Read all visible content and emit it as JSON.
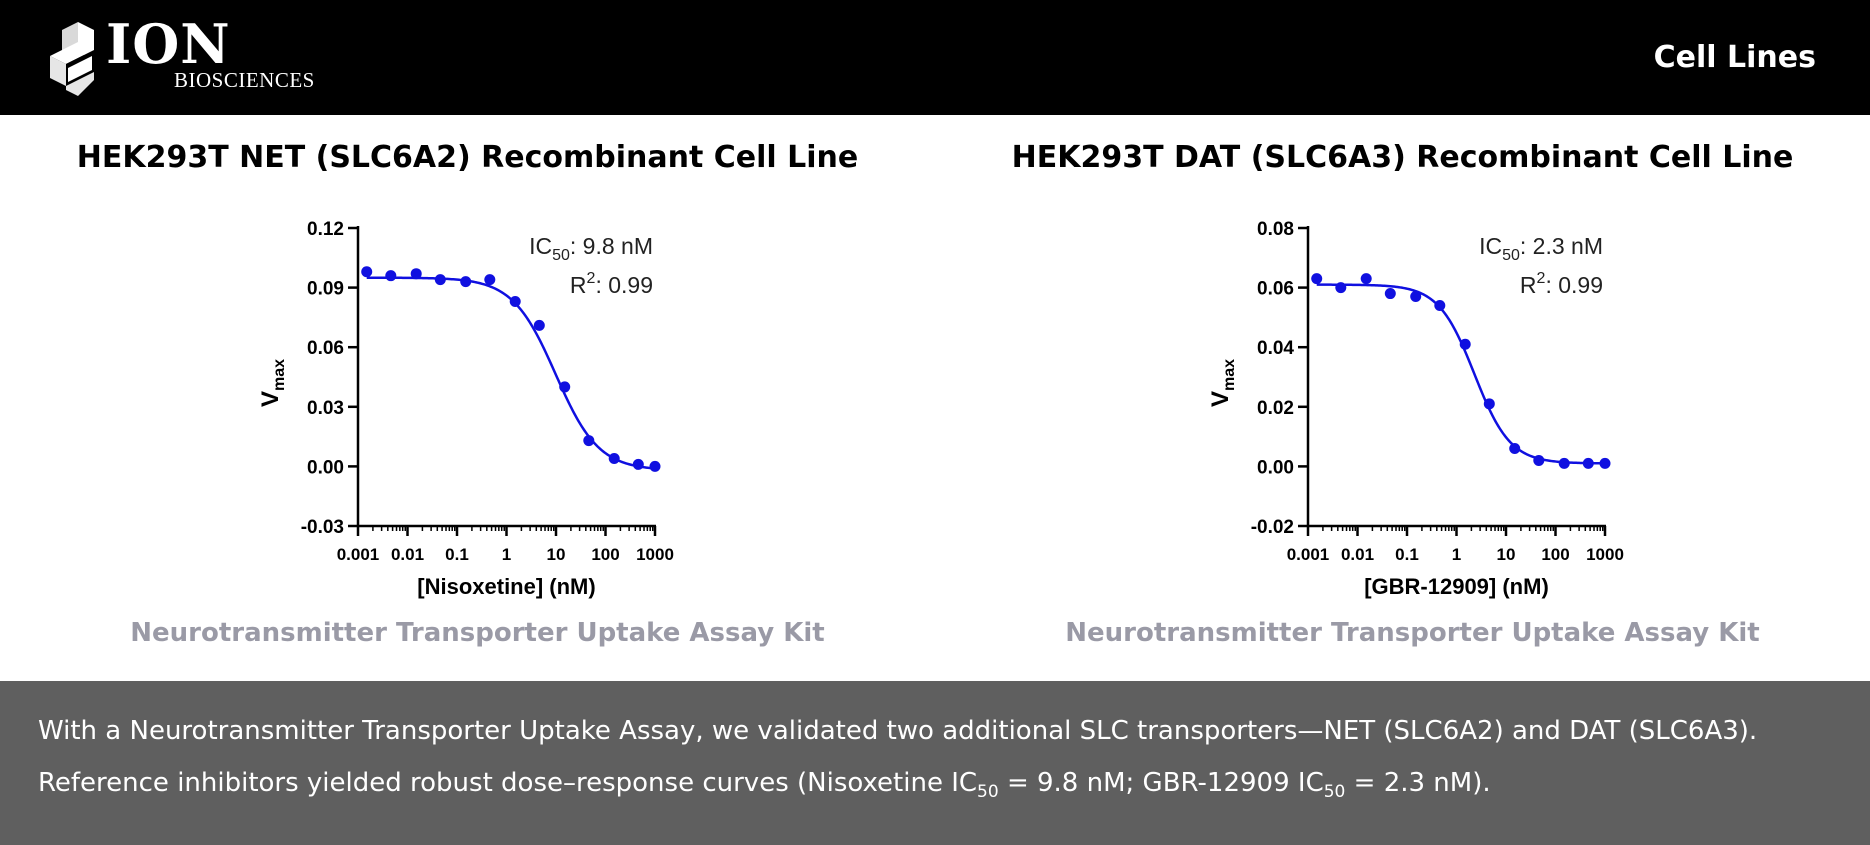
{
  "header": {
    "logo_text": "ION",
    "logo_subtext": "BIOSCIENCES",
    "title": "Cell Lines"
  },
  "panels": [
    {
      "title": "HEK293T NET (SLC6A2) Recombinant Cell Line",
      "kit_label": "Neurotransmitter Transporter Uptake Assay Kit",
      "annotation": {
        "ic50_prefix": "IC",
        "ic50_sub": "50",
        "ic50_value": ": 9.8 nM",
        "r2_prefix": "R",
        "r2_sup": "2",
        "r2_value": ": 0.99"
      }
    },
    {
      "title": "HEK293T DAT (SLC6A3) Recombinant Cell Line",
      "kit_label": "Neurotransmitter Transporter Uptake Assay Kit",
      "annotation": {
        "ic50_prefix": "IC",
        "ic50_sub": "50",
        "ic50_value": ": 2.3 nM",
        "r2_prefix": "R",
        "r2_sup": "2",
        "r2_value": ": 0.99"
      }
    }
  ],
  "chart_data": [
    {
      "type": "scatter",
      "xlabel": "[Nisoxetine] (nM)",
      "ylabel_main": "V",
      "ylabel_sub": "max",
      "x_scale": "log",
      "xlim": [
        0.001,
        1000
      ],
      "ylim": [
        -0.03,
        0.12
      ],
      "x_ticks": [
        0.001,
        0.01,
        0.1,
        1,
        10,
        100,
        1000
      ],
      "x_tick_labels": [
        "0.001",
        "0.01",
        "0.1",
        "1",
        "10",
        "100",
        "1000"
      ],
      "y_ticks": [
        -0.03,
        0.0,
        0.03,
        0.06,
        0.09,
        0.12
      ],
      "y_tick_labels": [
        "-0.03",
        "0.00",
        "0.03",
        "0.06",
        "0.09",
        "0.12"
      ],
      "ic50": 9.8,
      "r2": 0.99,
      "fit": {
        "top": 0.095,
        "bottom": -0.002,
        "ic50": 9.8,
        "hill": 1.0
      },
      "color": "#1010e0",
      "points": [
        {
          "x": 0.0015,
          "y": 0.098
        },
        {
          "x": 0.0046,
          "y": 0.096
        },
        {
          "x": 0.015,
          "y": 0.097
        },
        {
          "x": 0.046,
          "y": 0.094
        },
        {
          "x": 0.15,
          "y": 0.093
        },
        {
          "x": 0.46,
          "y": 0.094
        },
        {
          "x": 1.5,
          "y": 0.083
        },
        {
          "x": 4.6,
          "y": 0.071
        },
        {
          "x": 15,
          "y": 0.04
        },
        {
          "x": 46,
          "y": 0.013
        },
        {
          "x": 150,
          "y": 0.004
        },
        {
          "x": 460,
          "y": 0.001
        },
        {
          "x": 1000,
          "y": 0.0
        }
      ]
    },
    {
      "type": "scatter",
      "xlabel": "[GBR-12909] (nM)",
      "ylabel_main": "V",
      "ylabel_sub": "max",
      "x_scale": "log",
      "xlim": [
        0.001,
        1000
      ],
      "ylim": [
        -0.02,
        0.08
      ],
      "x_ticks": [
        0.001,
        0.01,
        0.1,
        1,
        10,
        100,
        1000
      ],
      "x_tick_labels": [
        "0.001",
        "0.01",
        "0.1",
        "1",
        "10",
        "100",
        "1000"
      ],
      "y_ticks": [
        -0.02,
        0.0,
        0.02,
        0.04,
        0.06,
        0.08
      ],
      "y_tick_labels": [
        "-0.02",
        "0.00",
        "0.02",
        "0.04",
        "0.06",
        "0.08"
      ],
      "ic50": 2.3,
      "r2": 0.99,
      "fit": {
        "top": 0.061,
        "bottom": 0.001,
        "ic50": 2.3,
        "hill": 1.2
      },
      "color": "#1010e0",
      "points": [
        {
          "x": 0.0015,
          "y": 0.063
        },
        {
          "x": 0.0046,
          "y": 0.06
        },
        {
          "x": 0.015,
          "y": 0.063
        },
        {
          "x": 0.046,
          "y": 0.058
        },
        {
          "x": 0.15,
          "y": 0.057
        },
        {
          "x": 0.46,
          "y": 0.054
        },
        {
          "x": 1.5,
          "y": 0.041
        },
        {
          "x": 4.6,
          "y": 0.021
        },
        {
          "x": 15,
          "y": 0.006
        },
        {
          "x": 46,
          "y": 0.002
        },
        {
          "x": 150,
          "y": 0.001
        },
        {
          "x": 460,
          "y": 0.001
        },
        {
          "x": 1000,
          "y": 0.001
        }
      ]
    }
  ],
  "footer": {
    "line1": "With a Neurotransmitter Transporter Uptake Assay, we validated two additional SLC transporters—NET (SLC6A2) and DAT (SLC6A3).",
    "line2_a": "Reference inhibitors yielded robust dose–response curves (Nisoxetine IC",
    "line2_sub1": "50",
    "line2_b": " = 9.8 nM; GBR-12909 IC",
    "line2_sub2": "50",
    "line2_c": " = 2.3 nM)."
  }
}
